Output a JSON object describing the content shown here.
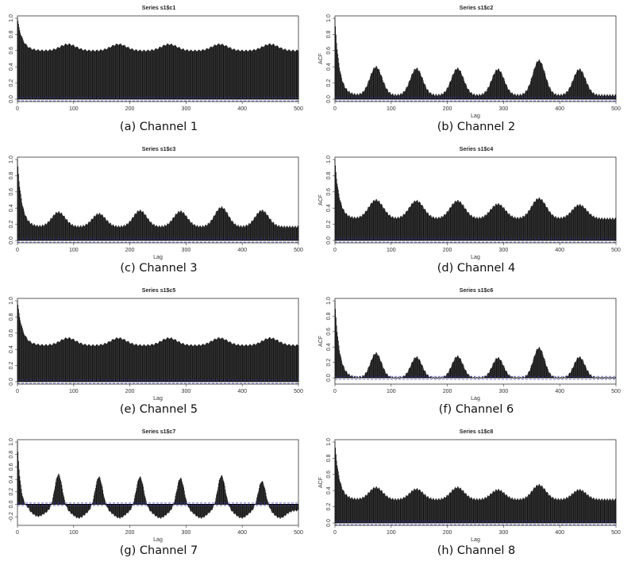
{
  "panels": [
    {
      "title": "Series s1$c1",
      "caption": "(a) Channel 1"
    },
    {
      "title": "Series s1$c2",
      "caption": "(b) Channel 2"
    },
    {
      "title": "Series s1$c3",
      "caption": "(c) Channel 3"
    },
    {
      "title": "Series s1$c4",
      "caption": "(d) Channel 4"
    },
    {
      "title": "Series s1$c5",
      "caption": "(e) Channel 5"
    },
    {
      "title": "Series s1$c6",
      "caption": "(f) Channel 6"
    },
    {
      "title": "Series s1$c7",
      "caption": "(g) Channel 7"
    },
    {
      "title": "Series s1$c8",
      "caption": "(h) Channel 8"
    }
  ],
  "colors": {
    "bars": "#111111",
    "ci": "#3333cc",
    "axis": "#333333"
  },
  "chart_data": [
    {
      "type": "bar",
      "title": "Series s1$c1",
      "xlabel": "",
      "ylabel": "",
      "xlim": [
        0,
        500
      ],
      "ylim": [
        0,
        1.0
      ],
      "xticks": [
        0,
        100,
        200,
        300,
        400,
        500
      ],
      "yticks": [
        0.0,
        0.2,
        0.4,
        0.6,
        0.8,
        1.0
      ],
      "ytick_labels": [
        "0.0",
        "0.2",
        "0.4",
        "0.6",
        "0.8",
        "1.0"
      ],
      "ci": [
        0.02,
        -0.02
      ],
      "show_zero": true,
      "baseline": 0.6,
      "decay_amp": 0.4,
      "decay_tau": 9,
      "period": 90,
      "peak_amp": 0.08,
      "peak_width": 14
    },
    {
      "type": "bar",
      "title": "Series s1$c2",
      "xlabel": "Lag",
      "ylabel": "ACF",
      "xlim": [
        0,
        500
      ],
      "ylim": [
        0,
        1.0
      ],
      "xticks": [
        0,
        100,
        200,
        300,
        400,
        500
      ],
      "yticks": [
        0.0,
        0.2,
        0.4,
        0.6,
        0.8,
        1.0
      ],
      "ytick_labels": [
        "0.0",
        "0.2",
        "0.4",
        "0.6",
        "0.8",
        "1.0"
      ],
      "ci": [
        0.02,
        -0.02
      ],
      "show_zero": true,
      "peak_lags": [
        73,
        145,
        218,
        290,
        363,
        435
      ],
      "peak_heights": [
        0.4,
        0.38,
        0.38,
        0.37,
        0.48,
        0.37
      ],
      "peak_width": 11,
      "trough": 0.05,
      "decay_tau": 8
    },
    {
      "type": "bar",
      "title": "Series s1$c3",
      "xlabel": "Lag",
      "ylabel": "",
      "xlim": [
        0,
        500
      ],
      "ylim": [
        0,
        1.0
      ],
      "xticks": [
        0,
        100,
        200,
        300,
        400,
        500
      ],
      "yticks": [
        0.0,
        0.2,
        0.4,
        0.6,
        0.8,
        1.0
      ],
      "ytick_labels": [
        "0.0",
        "0.2",
        "0.4",
        "0.6",
        "0.8",
        "1.0"
      ],
      "ci": [
        0.02,
        -0.02
      ],
      "show_zero": true,
      "peak_lags": [
        73,
        145,
        218,
        290,
        363,
        435
      ],
      "peak_heights": [
        0.35,
        0.33,
        0.37,
        0.36,
        0.41,
        0.37
      ],
      "peak_width": 12,
      "trough": 0.17,
      "decay_tau": 8
    },
    {
      "type": "bar",
      "title": "Series s1$c4",
      "xlabel": "Lag",
      "ylabel": "ACF",
      "xlim": [
        0,
        500
      ],
      "ylim": [
        0,
        1.0
      ],
      "xticks": [
        0,
        100,
        200,
        300,
        400,
        500
      ],
      "yticks": [
        0.0,
        0.2,
        0.4,
        0.6,
        0.8,
        1.0
      ],
      "ytick_labels": [
        "0.0",
        "0.2",
        "0.4",
        "0.6",
        "0.8",
        "1.0"
      ],
      "ci": [
        0.02,
        -0.02
      ],
      "show_zero": true,
      "peak_lags": [
        73,
        145,
        218,
        290,
        363,
        435
      ],
      "peak_heights": [
        0.5,
        0.49,
        0.49,
        0.45,
        0.52,
        0.44
      ],
      "peak_width": 13,
      "trough": 0.27,
      "decay_tau": 8
    },
    {
      "type": "bar",
      "title": "Series s1$c5",
      "xlabel": "Lag",
      "ylabel": "",
      "xlim": [
        0,
        500
      ],
      "ylim": [
        0,
        1.0
      ],
      "xticks": [
        0,
        100,
        200,
        300,
        400,
        500
      ],
      "yticks": [
        0.0,
        0.2,
        0.4,
        0.6,
        0.8,
        1.0
      ],
      "ytick_labels": [
        "0.0",
        "0.2",
        "0.4",
        "0.6",
        "0.8",
        "1.0"
      ],
      "ci": [
        0.02,
        -0.02
      ],
      "show_zero": true,
      "baseline": 0.45,
      "decay_amp": 0.55,
      "decay_tau": 9,
      "period": 90,
      "peak_amp": 0.09,
      "peak_width": 14
    },
    {
      "type": "bar",
      "title": "Series s1$c6",
      "xlabel": "Lag",
      "ylabel": "ACF",
      "xlim": [
        0,
        500
      ],
      "ylim": [
        -0.05,
        1.0
      ],
      "xticks": [
        0,
        100,
        200,
        300,
        400,
        500
      ],
      "yticks": [
        0.0,
        0.2,
        0.4,
        0.6,
        0.8,
        1.0
      ],
      "ytick_labels": [
        "0.0",
        "0.2",
        "0.4",
        "0.6",
        "0.8",
        "1.0"
      ],
      "ci": [
        0.02,
        -0.02
      ],
      "show_zero": true,
      "peak_lags": [
        73,
        145,
        218,
        290,
        363,
        435
      ],
      "peak_heights": [
        0.32,
        0.27,
        0.28,
        0.26,
        0.39,
        0.27
      ],
      "peak_width": 10,
      "trough": 0.0,
      "decay_tau": 8
    },
    {
      "type": "bar",
      "title": "Series s1$c7",
      "xlabel": "Lag",
      "ylabel": "",
      "xlim": [
        0,
        500
      ],
      "ylim": [
        -0.3,
        1.0
      ],
      "xticks": [
        0,
        100,
        200,
        300,
        400,
        500
      ],
      "yticks": [
        -0.2,
        0.0,
        0.2,
        0.4,
        0.6,
        0.8,
        1.0
      ],
      "ytick_labels": [
        "-0.2",
        "0.0",
        "0.2",
        "0.4",
        "0.6",
        "0.8",
        "1.0"
      ],
      "ci": [
        0.02,
        -0.02
      ],
      "show_zero": true,
      "peak_lags": [
        73,
        145,
        218,
        290,
        363,
        435
      ],
      "peak_heights": [
        0.48,
        0.44,
        0.44,
        0.42,
        0.46,
        0.37
      ],
      "peak_width": 7,
      "trough": -0.1,
      "trough_amp": 0.12,
      "decay_tau": 6
    },
    {
      "type": "bar",
      "title": "Series s1$c8",
      "xlabel": "Lag",
      "ylabel": "ACF",
      "xlim": [
        0,
        500
      ],
      "ylim": [
        0,
        1.0
      ],
      "xticks": [
        0,
        100,
        200,
        300,
        400,
        500
      ],
      "yticks": [
        0.0,
        0.2,
        0.4,
        0.6,
        0.8,
        1.0
      ],
      "ytick_labels": [
        "0.0",
        "0.2",
        "0.4",
        "0.6",
        "0.8",
        "1.0"
      ],
      "ci": [
        0.02,
        -0.02
      ],
      "show_zero": true,
      "peak_lags": [
        73,
        145,
        218,
        290,
        363,
        435
      ],
      "peak_heights": [
        0.44,
        0.42,
        0.44,
        0.41,
        0.47,
        0.41
      ],
      "peak_width": 12,
      "trough": 0.29,
      "decay_tau": 8
    }
  ]
}
